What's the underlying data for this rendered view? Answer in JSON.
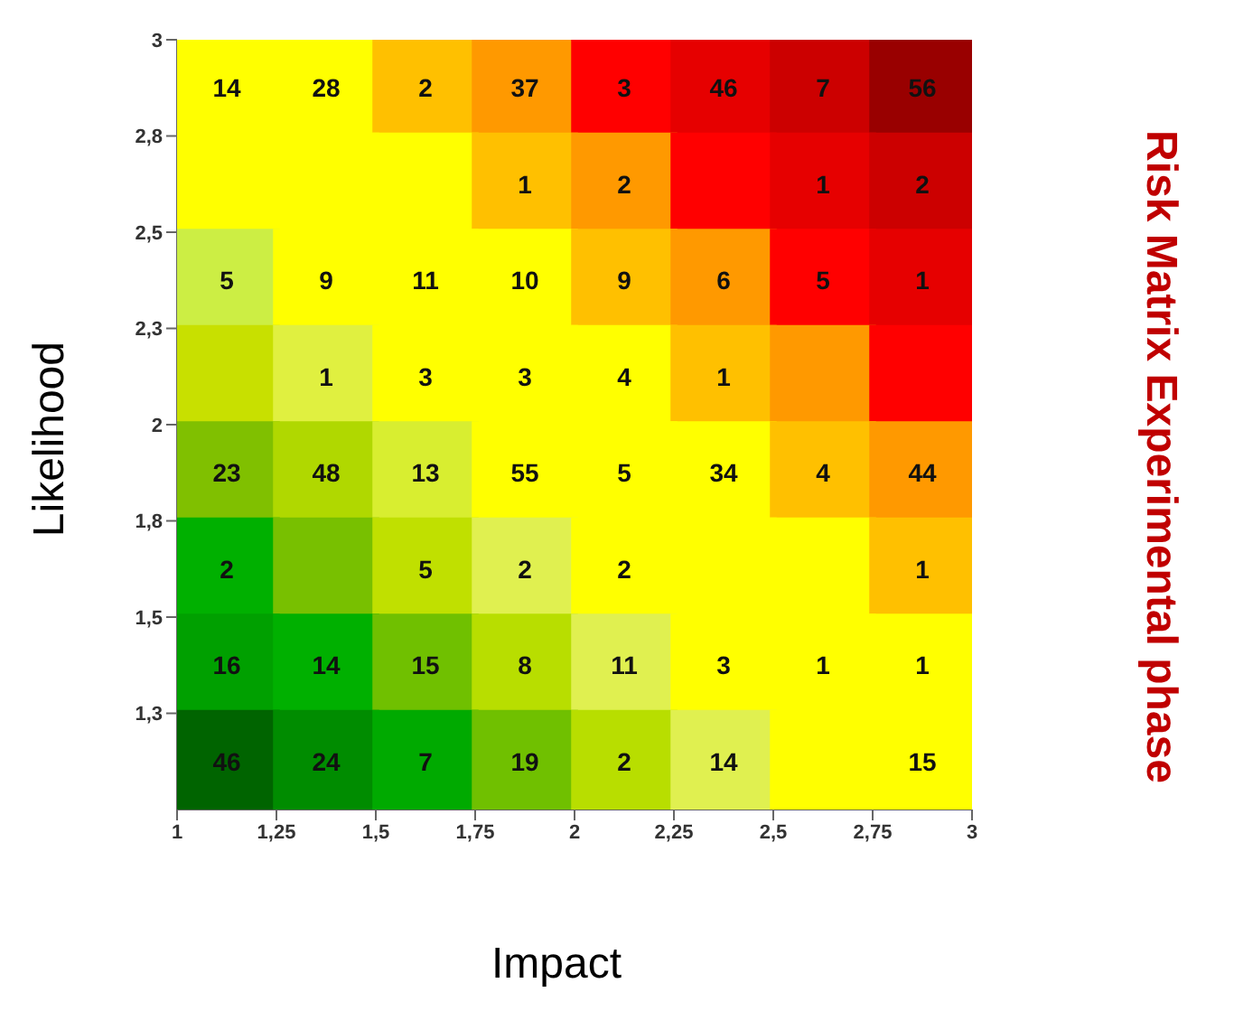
{
  "chart_data": {
    "type": "heatmap",
    "title": "Risk Matrix Experimental phase",
    "xlabel": "Impact",
    "ylabel": "Likelihood",
    "data_labels": true,
    "xlim": [
      1,
      3
    ],
    "xticks": [
      1,
      {
        "value": 1.25,
        "label": "1,25"
      },
      {
        "value": 1.5,
        "label": "1,5"
      },
      {
        "value": 1.75,
        "label": "1,75"
      },
      2,
      {
        "value": 2.25,
        "label": "2,25"
      },
      {
        "value": 2.5,
        "label": "2,5"
      },
      {
        "value": 2.75,
        "label": "2,75"
      },
      3
    ],
    "ylim": [
      1,
      3
    ],
    "yticks": [
      {
        "value": 1.25,
        "label": "1,3"
      },
      {
        "value": 1.5,
        "label": "1,5"
      },
      {
        "value": 1.75,
        "label": "1,8"
      },
      2,
      {
        "value": 2.25,
        "label": "2,3"
      },
      {
        "value": 2.5,
        "label": "2,5"
      },
      {
        "value": 2.75,
        "label": "2,8"
      },
      3
    ],
    "cells": [
      [
        14,
        28,
        2,
        37,
        3,
        46,
        7,
        56
      ],
      [
        null,
        null,
        null,
        1,
        2,
        null,
        1,
        2
      ],
      [
        5,
        9,
        11,
        10,
        9,
        6,
        5,
        1
      ],
      [
        null,
        1,
        3,
        3,
        4,
        1,
        null,
        null
      ],
      [
        23,
        48,
        13,
        55,
        5,
        34,
        4,
        44
      ],
      [
        2,
        null,
        5,
        2,
        2,
        null,
        null,
        1
      ],
      [
        16,
        14,
        15,
        8,
        11,
        3,
        1,
        1
      ],
      [
        46,
        24,
        7,
        19,
        2,
        14,
        null,
        15
      ]
    ],
    "colors": [
      [
        "#ffff00",
        "#ffff00",
        "#ffc000",
        "#ff9900",
        "#ff0000",
        "#e60000",
        "#cc0000",
        "#990000"
      ],
      [
        "#ffff00",
        "#ffff00",
        "#ffff00",
        "#ffc000",
        "#ff9900",
        "#ff0000",
        "#e60000",
        "#cc0000"
      ],
      [
        "#ccee44",
        "#ffff00",
        "#ffff00",
        "#ffff00",
        "#ffc000",
        "#ff9900",
        "#ff0000",
        "#e60000"
      ],
      [
        "#c8e000",
        "#e0f040",
        "#ffff00",
        "#ffff00",
        "#ffff00",
        "#ffc000",
        "#ff9900",
        "#ff0000"
      ],
      [
        "#80c000",
        "#b0d800",
        "#d8ee30",
        "#ffff00",
        "#ffff00",
        "#ffff00",
        "#ffc000",
        "#ff9900"
      ],
      [
        "#00b000",
        "#78c000",
        "#c0e000",
        "#e0f050",
        "#ffff00",
        "#ffff00",
        "#ffff00",
        "#ffc000"
      ],
      [
        "#00a000",
        "#00b000",
        "#70c000",
        "#b8de00",
        "#e0f050",
        "#ffff00",
        "#ffff00",
        "#ffff00"
      ],
      [
        "#006400",
        "#008c00",
        "#00aa00",
        "#70c000",
        "#b8de00",
        "#e0f050",
        "#ffff00",
        "#ffff00"
      ]
    ],
    "grid": false,
    "legend": false
  }
}
